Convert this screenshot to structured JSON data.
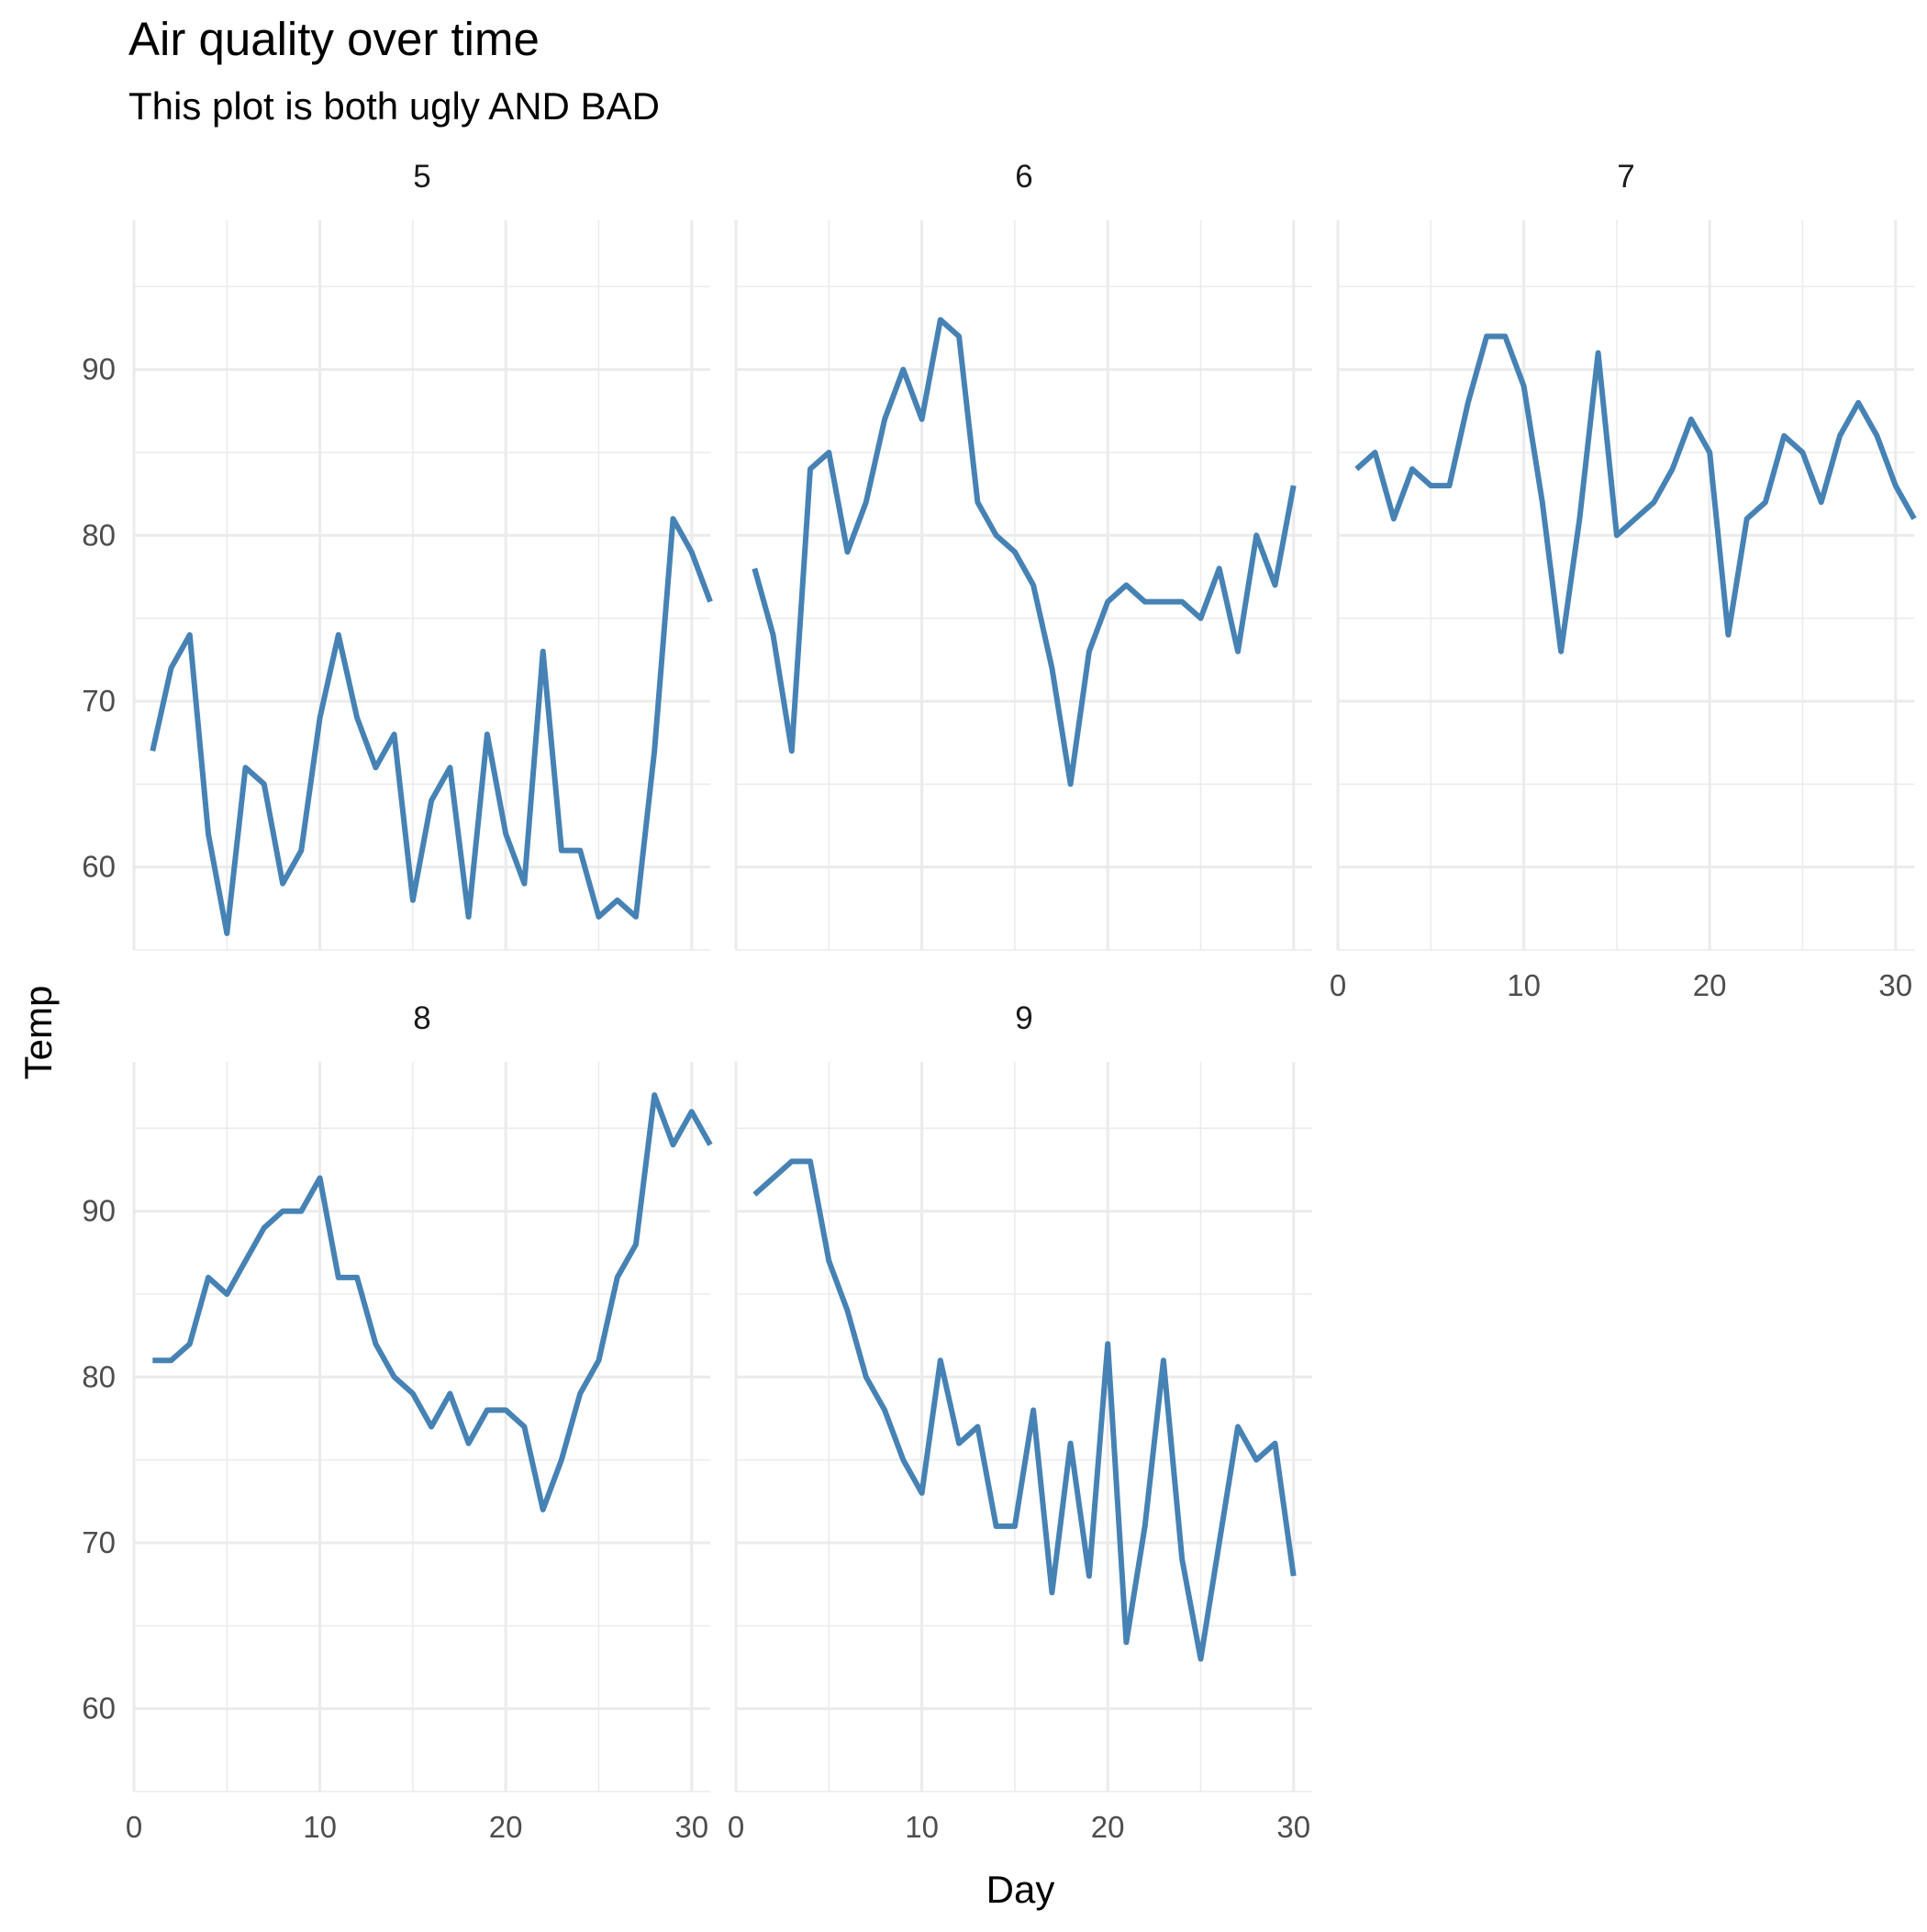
{
  "colors": {
    "line": "#4682b4",
    "grid": "#ebebeb",
    "tick_text": "#4d4d4d"
  },
  "chart_data": {
    "type": "line",
    "title": "Air quality over time",
    "subtitle": "This plot is both ugly AND BAD",
    "xlabel": "Day",
    "ylabel": "Temp",
    "xlim": [
      0,
      31
    ],
    "ylim": [
      55,
      99
    ],
    "x_ticks": [
      0,
      10,
      20,
      30
    ],
    "y_ticks": [
      60,
      70,
      80,
      90
    ],
    "grid": true,
    "facets": [
      {
        "label": "5",
        "x": [
          1,
          2,
          3,
          4,
          5,
          6,
          7,
          8,
          9,
          10,
          11,
          12,
          13,
          14,
          15,
          16,
          17,
          18,
          19,
          20,
          21,
          22,
          23,
          24,
          25,
          26,
          27,
          28,
          29,
          30,
          31
        ],
        "y": [
          67,
          72,
          74,
          62,
          56,
          66,
          65,
          59,
          61,
          69,
          74,
          69,
          66,
          68,
          58,
          64,
          66,
          57,
          68,
          62,
          59,
          73,
          61,
          61,
          57,
          58,
          57,
          67,
          81,
          79,
          76
        ]
      },
      {
        "label": "6",
        "x": [
          1,
          2,
          3,
          4,
          5,
          6,
          7,
          8,
          9,
          10,
          11,
          12,
          13,
          14,
          15,
          16,
          17,
          18,
          19,
          20,
          21,
          22,
          23,
          24,
          25,
          26,
          27,
          28,
          29,
          30
        ],
        "y": [
          78,
          74,
          67,
          84,
          85,
          79,
          82,
          87,
          90,
          87,
          93,
          92,
          82,
          80,
          79,
          77,
          72,
          65,
          73,
          76,
          77,
          76,
          76,
          76,
          75,
          78,
          73,
          80,
          77,
          83
        ]
      },
      {
        "label": "7",
        "x": [
          1,
          2,
          3,
          4,
          5,
          6,
          7,
          8,
          9,
          10,
          11,
          12,
          13,
          14,
          15,
          16,
          17,
          18,
          19,
          20,
          21,
          22,
          23,
          24,
          25,
          26,
          27,
          28,
          29,
          30,
          31
        ],
        "y": [
          84,
          85,
          81,
          84,
          83,
          83,
          88,
          92,
          92,
          89,
          82,
          73,
          81,
          91,
          80,
          81,
          82,
          84,
          87,
          85,
          74,
          81,
          82,
          86,
          85,
          82,
          86,
          88,
          86,
          83,
          81
        ]
      },
      {
        "label": "8",
        "x": [
          1,
          2,
          3,
          4,
          5,
          6,
          7,
          8,
          9,
          10,
          11,
          12,
          13,
          14,
          15,
          16,
          17,
          18,
          19,
          20,
          21,
          22,
          23,
          24,
          25,
          26,
          27,
          28,
          29,
          30,
          31
        ],
        "y": [
          81,
          81,
          82,
          86,
          85,
          87,
          89,
          90,
          90,
          92,
          86,
          86,
          82,
          80,
          79,
          77,
          79,
          76,
          78,
          78,
          77,
          72,
          75,
          79,
          81,
          86,
          88,
          97,
          94,
          96,
          94
        ]
      },
      {
        "label": "9",
        "x": [
          1,
          2,
          3,
          4,
          5,
          6,
          7,
          8,
          9,
          10,
          11,
          12,
          13,
          14,
          15,
          16,
          17,
          18,
          19,
          20,
          21,
          22,
          23,
          24,
          25,
          26,
          27,
          28,
          29,
          30
        ],
        "y": [
          91,
          92,
          93,
          93,
          87,
          84,
          80,
          78,
          75,
          73,
          81,
          76,
          77,
          71,
          71,
          78,
          67,
          76,
          68,
          82,
          64,
          71,
          81,
          69,
          63,
          70,
          77,
          75,
          76,
          68
        ]
      }
    ]
  }
}
